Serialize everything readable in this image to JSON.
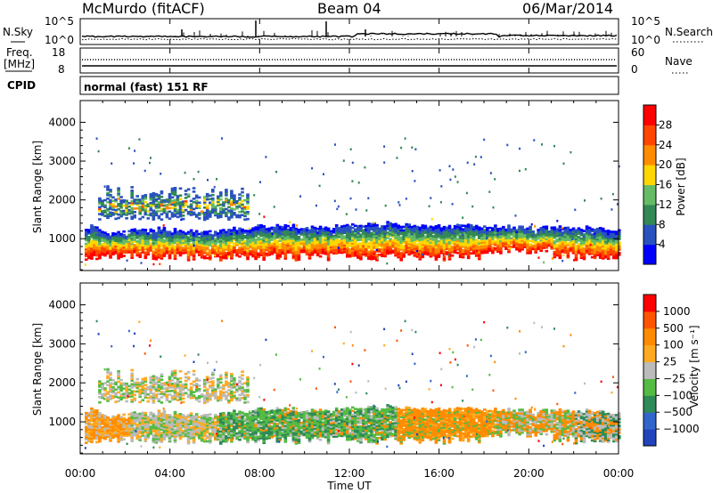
{
  "header": {
    "station": "McMurdo (fitACF)",
    "beam": "Beam 04",
    "date": "06/Mar/2014"
  },
  "status_panel": {
    "nsky_label": "N.Sky",
    "nsky_ticks": [
      "10^5",
      "10^0"
    ],
    "nsearch_label": "N.Search",
    "nsearch_ticks": [
      "10^5",
      "10^0"
    ],
    "freq_label": "Freq.",
    "freq_unit": "[MHz]",
    "freq_ticks": [
      "18",
      "8"
    ],
    "nave_label": "Nave",
    "nave_ticks": [
      "60",
      "0"
    ],
    "cpid_label": "CPID",
    "cpid_value": "normal (fast) 151 RF"
  },
  "chart_data": [
    {
      "type": "heatmap",
      "name": "power",
      "ylabel": "Slant Range [km]",
      "yticks": [
        "1000",
        "2000",
        "3000",
        "4000"
      ],
      "ylim": [
        180,
        4560
      ],
      "xlim": [
        0,
        24
      ],
      "colorbar": {
        "label": "Power [dB]",
        "ticks": [
          "4",
          "8",
          "12",
          "16",
          "20",
          "24",
          "28"
        ],
        "colors": [
          "#0000ff",
          "#2a52be",
          "#338855",
          "#66bb66",
          "#ffd700",
          "#ff8c00",
          "#ff4500",
          "#ff0000"
        ]
      }
    },
    {
      "type": "heatmap",
      "name": "velocity",
      "ylabel": "Slant Range [km]",
      "yticks": [
        "1000",
        "2000",
        "3000",
        "4000"
      ],
      "ylim": [
        180,
        4560
      ],
      "xlim": [
        0,
        24
      ],
      "xlabel": "Time UT",
      "xticks": [
        "00:00",
        "04:00",
        "08:00",
        "12:00",
        "16:00",
        "20:00",
        "00:00"
      ],
      "colorbar": {
        "label": "Velocity [m s⁻¹]",
        "ticks": [
          "1000",
          "500",
          "100",
          "25",
          "−25",
          "−100",
          "−500",
          "−1000"
        ],
        "colors": [
          "#2244bb",
          "#3366cc",
          "#2e8b57",
          "#55bb44",
          "#bbbbbb",
          "#ffaa22",
          "#ff8c00",
          "#ff5500",
          "#ff0000"
        ]
      }
    }
  ]
}
